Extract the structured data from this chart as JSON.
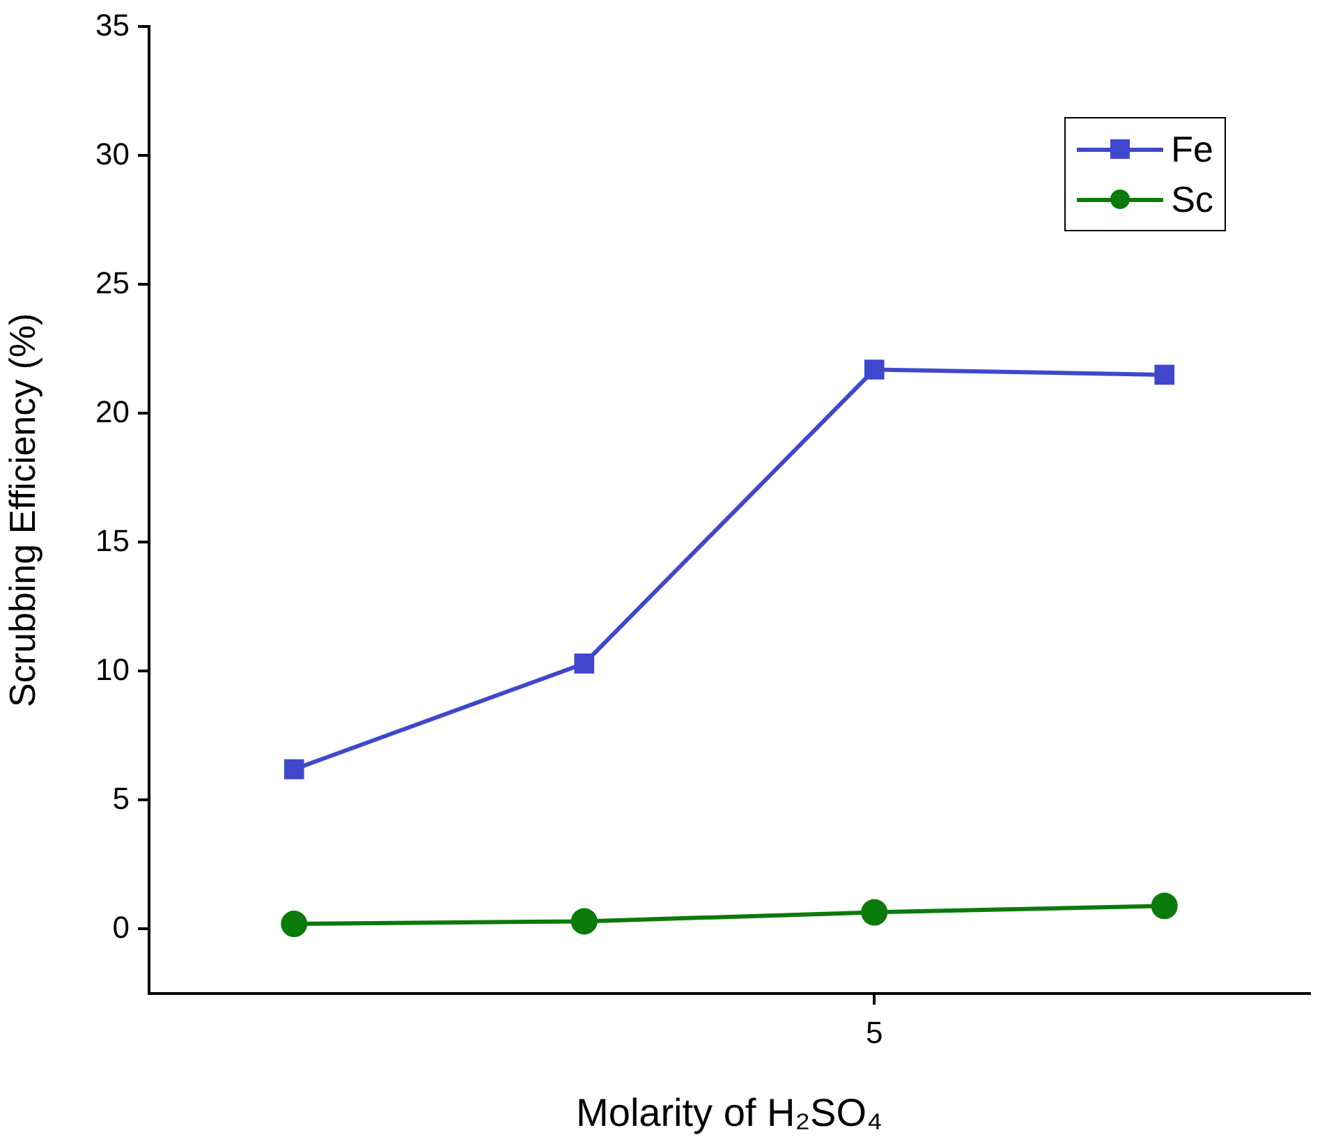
{
  "chart_data": {
    "type": "line",
    "xlabel": "Molarity of H₂SO₄",
    "ylabel": "Scrubbing Efficiency (%)",
    "categories": [
      null,
      null,
      "5",
      null
    ],
    "ylim": [
      -2.5,
      35
    ],
    "yticks": [
      0,
      5,
      10,
      15,
      20,
      25,
      30,
      35
    ],
    "legend": "top right",
    "line_style": "solid",
    "series": [
      {
        "name": "Fe",
        "color": "#3f48cc",
        "marker": "square",
        "values": [
          6.2,
          10.3,
          21.7,
          21.5
        ]
      },
      {
        "name": "Sc",
        "color": "#0a7a0a",
        "marker": "circle",
        "values": [
          0.2,
          0.3,
          0.65,
          0.9
        ]
      }
    ]
  }
}
